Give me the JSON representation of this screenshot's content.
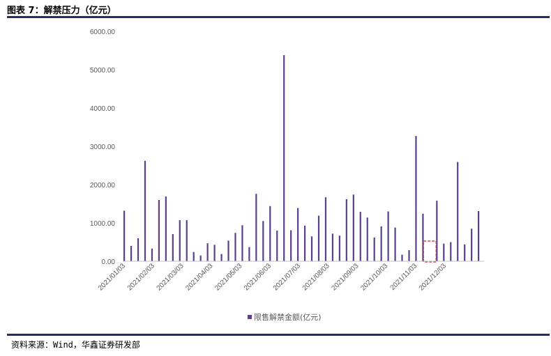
{
  "title": "图表 7：解禁压力（亿元）",
  "source": "资料来源：Wind，华鑫证券研发部",
  "colors": {
    "bar": "#5a3f8f",
    "axis": "#bfbfbf",
    "rule": "#2b2b66",
    "highlight": "#c0504d"
  },
  "chart_data": {
    "type": "bar",
    "title": "",
    "ylim": [
      0,
      6000
    ],
    "yticks": [
      "0.00",
      "1000.00",
      "2000.00",
      "3000.00",
      "4000.00",
      "5000.00",
      "6000.00"
    ],
    "xtick_labels": [
      "2021/01/03",
      "2021/02/03",
      "2021/03/03",
      "2021/04/03",
      "2021/05/03",
      "2021/06/03",
      "2021/07/03",
      "2021/08/03",
      "2021/09/03",
      "2021/10/03",
      "2021/11/03",
      "2021/12/03"
    ],
    "legend": "限售解禁金额(亿元)",
    "legend_position": "bottom",
    "grid": false,
    "series": [
      {
        "name": "限售解禁金额(亿元)",
        "values": [
          1320,
          400,
          600,
          2620,
          330,
          1600,
          1690,
          710,
          1070,
          1070,
          240,
          150,
          470,
          430,
          190,
          540,
          740,
          940,
          370,
          1760,
          1050,
          1440,
          800,
          5380,
          810,
          1390,
          930,
          650,
          1190,
          1670,
          720,
          670,
          1620,
          1740,
          1290,
          1140,
          620,
          910,
          1300,
          880,
          170,
          290,
          3270,
          1240,
          0,
          1580,
          460,
          500,
          2590,
          440,
          850,
          1310
        ]
      }
    ],
    "highlight": {
      "label": "dashed box",
      "bar_index": 44
    }
  }
}
